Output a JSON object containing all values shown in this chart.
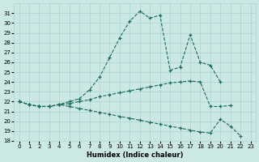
{
  "xlabel": "Humidex (Indice chaleur)",
  "background_color": "#cce8e4",
  "grid_color": "#aad4d0",
  "line_color": "#1a6b5a",
  "xlim": [
    -0.5,
    23.5
  ],
  "ylim": [
    18,
    32
  ],
  "yticks": [
    18,
    19,
    20,
    21,
    22,
    23,
    24,
    25,
    26,
    27,
    28,
    29,
    30,
    31
  ],
  "xticks": [
    0,
    1,
    2,
    3,
    4,
    5,
    6,
    7,
    8,
    9,
    10,
    11,
    12,
    13,
    14,
    15,
    16,
    17,
    18,
    19,
    20,
    21,
    22,
    23
  ],
  "series1": {
    "x": [
      0,
      1,
      2,
      3,
      4,
      5,
      6,
      7,
      8,
      9,
      10,
      11,
      12,
      13,
      14,
      15,
      16,
      17,
      18,
      19,
      20,
      21,
      22,
      23
    ],
    "y": [
      22,
      21.7,
      21.5,
      21.5,
      21.7,
      22.0,
      22.3,
      23.2,
      24.5,
      26.5,
      28.5,
      30.2,
      31.2,
      30.5,
      30.8,
      25.2,
      25.5,
      28.8,
      26.0,
      25.7,
      24.0,
      null,
      null,
      null
    ]
  },
  "series2": {
    "x": [
      0,
      1,
      2,
      3,
      4,
      5,
      6,
      7,
      8,
      9,
      10,
      11,
      12,
      13,
      14,
      15,
      16,
      17,
      18,
      19,
      20,
      21,
      22,
      23
    ],
    "y": [
      22,
      21.7,
      21.5,
      21.5,
      21.7,
      21.8,
      22.0,
      22.2,
      22.5,
      22.7,
      22.9,
      23.1,
      23.3,
      23.5,
      23.7,
      23.9,
      24.0,
      24.1,
      24.0,
      21.5,
      21.5,
      21.6,
      null,
      null
    ]
  },
  "series3": {
    "x": [
      0,
      1,
      2,
      3,
      4,
      5,
      6,
      7,
      8,
      9,
      10,
      11,
      12,
      13,
      14,
      15,
      16,
      17,
      18,
      19,
      20,
      21,
      22,
      23
    ],
    "y": [
      22,
      21.7,
      21.5,
      21.5,
      21.7,
      21.5,
      21.3,
      21.1,
      20.9,
      20.7,
      20.5,
      20.3,
      20.1,
      19.9,
      19.7,
      19.5,
      19.3,
      19.1,
      18.9,
      18.8,
      20.2,
      19.5,
      18.5,
      null
    ]
  }
}
